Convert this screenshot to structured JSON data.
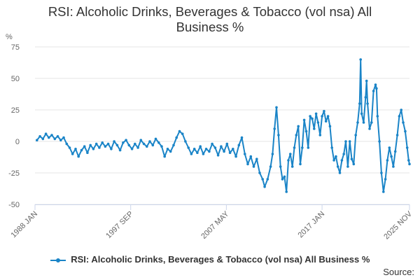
{
  "chart_data": {
    "type": "line",
    "title": "RSI: Alcoholic Drinks, Beverages & Tobacco (vol nsa) All Business %",
    "title_lines": [
      "RSI: Alcoholic Drinks, Beverages & Tobacco (vol nsa) All",
      "Business %"
    ],
    "ylabel": "%",
    "ylim": [
      -50,
      75
    ],
    "yticks": [
      75,
      50,
      25,
      0,
      -25,
      -50
    ],
    "xlim": [
      1988.0,
      2025.833
    ],
    "xticks": [
      {
        "label": "1988 JAN",
        "value": 1988.0
      },
      {
        "label": "1997 SEP",
        "value": 1997.667
      },
      {
        "label": "2007 MAY",
        "value": 2007.333
      },
      {
        "label": "2017 JAN",
        "value": 2017.0
      },
      {
        "label": "2025 NOV",
        "value": 2025.833
      }
    ],
    "grid": true,
    "legend_position": "bottom",
    "series": [
      {
        "name": "RSI: Alcoholic Drinks, Beverages & Tobacco (vol nsa) All Business %",
        "color": "#1a84c7",
        "points": [
          [
            1988.2,
            1
          ],
          [
            1988.5,
            4
          ],
          [
            1988.8,
            2
          ],
          [
            1989.1,
            6
          ],
          [
            1989.4,
            3
          ],
          [
            1989.7,
            5
          ],
          [
            1990.0,
            2
          ],
          [
            1990.3,
            4
          ],
          [
            1990.6,
            1
          ],
          [
            1990.9,
            3
          ],
          [
            1991.2,
            -2
          ],
          [
            1991.5,
            -5
          ],
          [
            1991.8,
            -10
          ],
          [
            1992.1,
            -6
          ],
          [
            1992.4,
            -12
          ],
          [
            1992.7,
            -7
          ],
          [
            1993.0,
            -4
          ],
          [
            1993.3,
            -9
          ],
          [
            1993.6,
            -3
          ],
          [
            1993.9,
            -6
          ],
          [
            1994.2,
            -2
          ],
          [
            1994.5,
            -5
          ],
          [
            1994.8,
            -1
          ],
          [
            1995.1,
            -4
          ],
          [
            1995.4,
            -2
          ],
          [
            1995.7,
            -6
          ],
          [
            1996.0,
            0
          ],
          [
            1996.3,
            -3
          ],
          [
            1996.6,
            -7
          ],
          [
            1996.9,
            -1
          ],
          [
            1997.2,
            1
          ],
          [
            1997.5,
            -3
          ],
          [
            1997.8,
            -6
          ],
          [
            1998.1,
            -2
          ],
          [
            1998.4,
            -5
          ],
          [
            1998.7,
            1
          ],
          [
            1999.0,
            -2
          ],
          [
            1999.3,
            -4
          ],
          [
            1999.6,
            0
          ],
          [
            1999.9,
            -3
          ],
          [
            2000.2,
            2
          ],
          [
            2000.5,
            -1
          ],
          [
            2000.8,
            -4
          ],
          [
            2001.1,
            -12
          ],
          [
            2001.4,
            -6
          ],
          [
            2001.7,
            -8
          ],
          [
            2002.0,
            -3
          ],
          [
            2002.3,
            3
          ],
          [
            2002.6,
            8
          ],
          [
            2002.9,
            6
          ],
          [
            2003.2,
            0
          ],
          [
            2003.5,
            -5
          ],
          [
            2003.8,
            -10
          ],
          [
            2004.1,
            -6
          ],
          [
            2004.4,
            -9
          ],
          [
            2004.7,
            -4
          ],
          [
            2005.0,
            -10
          ],
          [
            2005.3,
            -6
          ],
          [
            2005.6,
            -8
          ],
          [
            2005.9,
            -2
          ],
          [
            2006.2,
            -5
          ],
          [
            2006.5,
            -11
          ],
          [
            2006.8,
            -4
          ],
          [
            2007.1,
            -8
          ],
          [
            2007.4,
            -2
          ],
          [
            2007.7,
            -9
          ],
          [
            2008.0,
            -6
          ],
          [
            2008.3,
            -12
          ],
          [
            2008.6,
            -3
          ],
          [
            2008.9,
            3
          ],
          [
            2009.2,
            -10
          ],
          [
            2009.5,
            -18
          ],
          [
            2009.8,
            -12
          ],
          [
            2010.1,
            -20
          ],
          [
            2010.4,
            -14
          ],
          [
            2010.7,
            -25
          ],
          [
            2011.0,
            -30
          ],
          [
            2011.2,
            -36
          ],
          [
            2011.5,
            -30
          ],
          [
            2011.8,
            -20
          ],
          [
            2012.0,
            -10
          ],
          [
            2012.2,
            10
          ],
          [
            2012.4,
            27
          ],
          [
            2012.6,
            5
          ],
          [
            2012.8,
            -20
          ],
          [
            2013.0,
            -30
          ],
          [
            2013.2,
            -28
          ],
          [
            2013.4,
            -40
          ],
          [
            2013.6,
            -15
          ],
          [
            2013.8,
            -10
          ],
          [
            2014.0,
            -20
          ],
          [
            2014.2,
            -5
          ],
          [
            2014.4,
            5
          ],
          [
            2014.6,
            12
          ],
          [
            2014.8,
            -18
          ],
          [
            2015.0,
            -5
          ],
          [
            2015.2,
            17
          ],
          [
            2015.4,
            8
          ],
          [
            2015.6,
            -5
          ],
          [
            2015.8,
            20
          ],
          [
            2016.0,
            18
          ],
          [
            2016.2,
            10
          ],
          [
            2016.4,
            22
          ],
          [
            2016.6,
            15
          ],
          [
            2016.8,
            5
          ],
          [
            2017.0,
            20
          ],
          [
            2017.2,
            24
          ],
          [
            2017.4,
            16
          ],
          [
            2017.6,
            20
          ],
          [
            2017.8,
            12
          ],
          [
            2018.0,
            -5
          ],
          [
            2018.2,
            -15
          ],
          [
            2018.4,
            -12
          ],
          [
            2018.6,
            -20
          ],
          [
            2018.8,
            -25
          ],
          [
            2019.0,
            -15
          ],
          [
            2019.2,
            -10
          ],
          [
            2019.4,
            0
          ],
          [
            2019.6,
            -20
          ],
          [
            2019.8,
            0
          ],
          [
            2020.0,
            -14
          ],
          [
            2020.2,
            -18
          ],
          [
            2020.4,
            5
          ],
          [
            2020.6,
            15
          ],
          [
            2020.8,
            30
          ],
          [
            2020.9,
            65
          ],
          [
            2021.0,
            22
          ],
          [
            2021.2,
            15
          ],
          [
            2021.4,
            35
          ],
          [
            2021.5,
            48
          ],
          [
            2021.6,
            30
          ],
          [
            2021.8,
            10
          ],
          [
            2022.0,
            15
          ],
          [
            2022.2,
            40
          ],
          [
            2022.4,
            45
          ],
          [
            2022.5,
            42
          ],
          [
            2022.6,
            20
          ],
          [
            2022.8,
            0
          ],
          [
            2023.0,
            -25
          ],
          [
            2023.2,
            -40
          ],
          [
            2023.4,
            -30
          ],
          [
            2023.6,
            -15
          ],
          [
            2023.8,
            -5
          ],
          [
            2024.0,
            -12
          ],
          [
            2024.2,
            -20
          ],
          [
            2024.4,
            -8
          ],
          [
            2024.6,
            5
          ],
          [
            2024.8,
            20
          ],
          [
            2025.0,
            25
          ],
          [
            2025.2,
            15
          ],
          [
            2025.4,
            8
          ],
          [
            2025.6,
            -5
          ],
          [
            2025.75,
            -15
          ],
          [
            2025.83,
            -18
          ]
        ]
      }
    ]
  },
  "legend": {
    "label": "RSI: Alcoholic Drinks, Beverages & Tobacco (vol nsa) All Business %"
  },
  "source": {
    "label": "Source:"
  }
}
